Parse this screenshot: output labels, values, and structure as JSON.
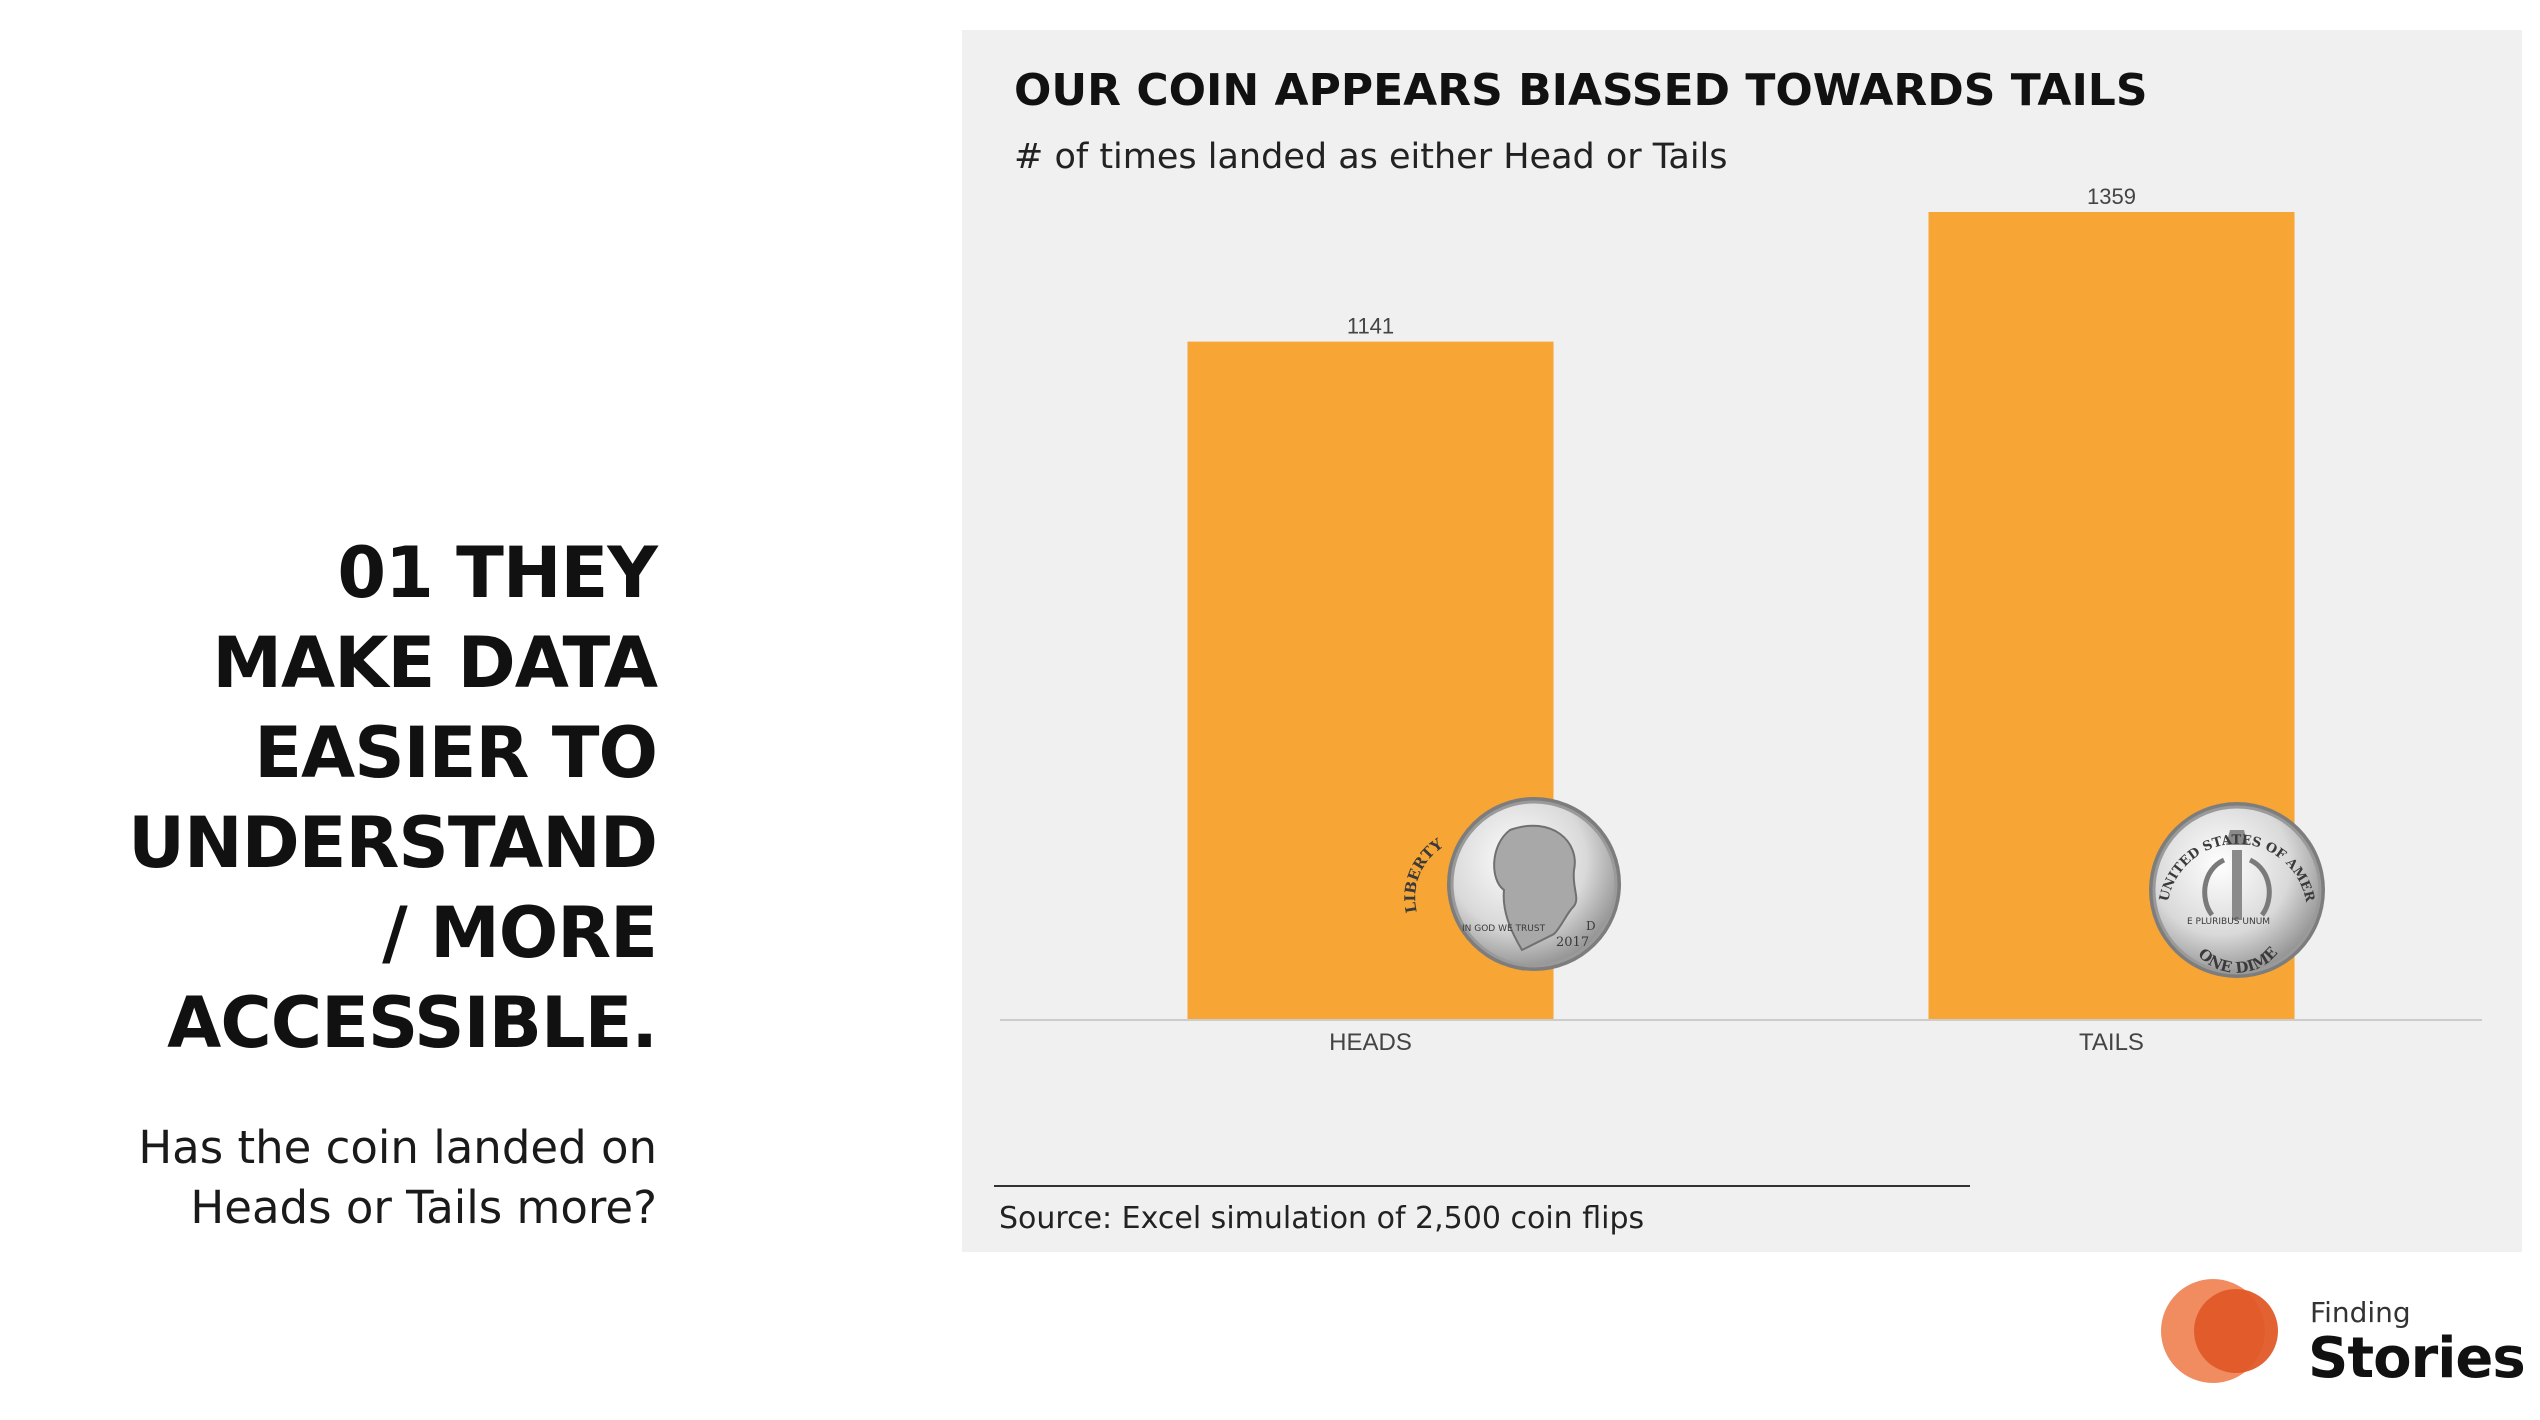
{
  "slide": {
    "headline_lines": [
      "01 THEY",
      "MAKE DATA",
      "EASIER TO",
      "UNDERSTAND",
      "/ MORE",
      "ACCESSIBLE."
    ],
    "subline_lines": [
      "Has the coin landed on",
      "Heads or Tails more?"
    ]
  },
  "coins": {
    "heads_text_1": "LIBERTY",
    "heads_text_2": "IN GOD WE TRUST",
    "heads_year": "2017",
    "heads_mint": "D",
    "tails_text_1": "UNITED STATES OF AMERICA",
    "tails_text_2": "E PLURIBUS UNUM",
    "tails_text_3": "ONE DIME"
  },
  "logo": {
    "line1": "Finding",
    "line2": "Stories",
    "colors": [
      "#f08050",
      "#e05a28"
    ]
  },
  "chart_data": {
    "type": "bar",
    "title": "OUR COIN APPEARS BIASSED TOWARDS TAILS",
    "subtitle": "# of times landed as either Head or Tails",
    "categories": [
      "HEADS",
      "TAILS"
    ],
    "values": [
      1141,
      1359
    ],
    "data_labels": [
      "1141",
      "1359"
    ],
    "ylim": [
      0,
      1359
    ],
    "grid": false,
    "legend": "none",
    "source": "Source: Excel simulation of 2,500 coin flips",
    "bar_color": "#f7a535",
    "panel_color": "#f0f0f0",
    "axis_color": "#cccccc"
  }
}
